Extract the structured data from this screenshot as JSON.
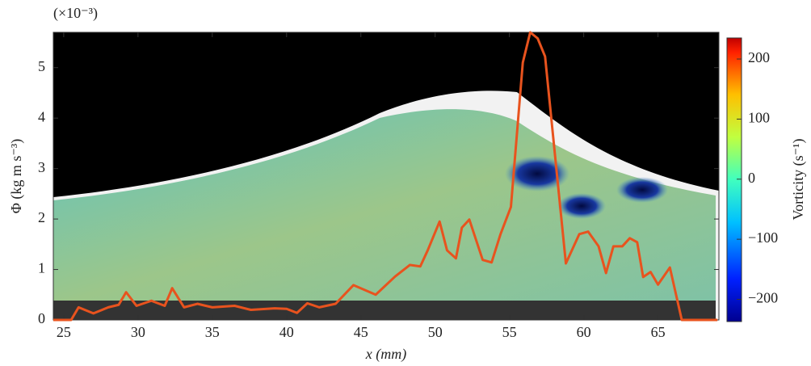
{
  "chart_data": {
    "type": "line",
    "scale_note": "(×10⁻³)",
    "xlabel": "x (mm)",
    "ylabel": "Φ (kg m s⁻³)",
    "xlim": [
      24.3,
      69.1
    ],
    "ylim": [
      0,
      5.7
    ],
    "xticks": [
      25,
      30,
      35,
      40,
      45,
      50,
      55,
      60,
      65
    ],
    "yticks": [
      0,
      1,
      2,
      3,
      4,
      5
    ],
    "series": [
      {
        "color": "#e8531e",
        "x": [
          24.3,
          25.5,
          26,
          27,
          28,
          28.7,
          29.2,
          29.9,
          30.9,
          31.8,
          32.3,
          33.1,
          34,
          35,
          36.5,
          37.6,
          39.2,
          40,
          40.7,
          41.4,
          42.2,
          43.3,
          44.5,
          46,
          47.3,
          48.3,
          49,
          49.5,
          50.3,
          50.8,
          51.4,
          51.8,
          52.3,
          53.2,
          53.8,
          54.4,
          55.1,
          55.9,
          56.4,
          56.9,
          57.4,
          58.8,
          59.7,
          60.3,
          61,
          61.5,
          62,
          62.6,
          63.1,
          63.6,
          64,
          64.5,
          65,
          65.8,
          66.6,
          69
        ],
        "values": [
          0,
          0,
          0.25,
          0.13,
          0.25,
          0.3,
          0.55,
          0.28,
          0.38,
          0.28,
          0.63,
          0.25,
          0.32,
          0.25,
          0.28,
          0.2,
          0.23,
          0.22,
          0.14,
          0.33,
          0.25,
          0.32,
          0.69,
          0.5,
          0.86,
          1.09,
          1.06,
          1.38,
          1.95,
          1.38,
          1.22,
          1.83,
          1.99,
          1.19,
          1.14,
          1.7,
          2.24,
          5.1,
          5.7,
          5.58,
          5.22,
          1.12,
          1.7,
          1.75,
          1.46,
          0.93,
          1.46,
          1.46,
          1.62,
          1.54,
          0.85,
          0.95,
          0.7,
          1.04,
          0,
          0
        ]
      }
    ],
    "colorbar": {
      "label": "Vorticity (s⁻¹)",
      "lim": [
        -237,
        235
      ],
      "ticks": [
        {
          "value": -200,
          "label": "−200"
        },
        {
          "value": -100,
          "label": "−100"
        },
        0,
        100,
        200
      ]
    }
  }
}
